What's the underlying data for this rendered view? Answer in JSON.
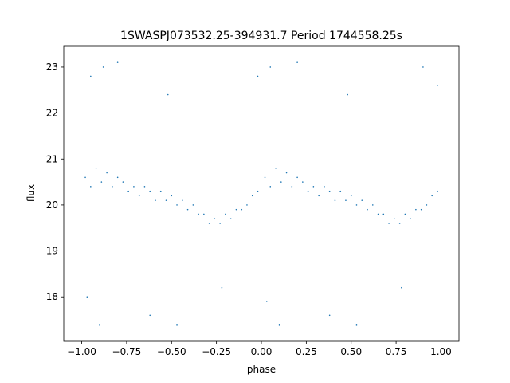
{
  "chart_data": {
    "type": "scatter",
    "title": "1SWASPJ073532.25-394931.7 Period 1744558.25s",
    "xlabel": "phase",
    "ylabel": "flux",
    "xlim": [
      -1.1,
      1.1
    ],
    "ylim": [
      17.05,
      23.45
    ],
    "x_ticks": [
      -1.0,
      -0.75,
      -0.5,
      -0.25,
      0.0,
      0.25,
      0.5,
      0.75,
      1.0
    ],
    "x_tick_labels": [
      "−1.00",
      "−0.75",
      "−0.50",
      "−0.25",
      "0.00",
      "0.25",
      "0.50",
      "0.75",
      "1.00"
    ],
    "y_ticks": [
      18,
      19,
      20,
      21,
      22,
      23
    ],
    "y_tick_labels": [
      "18",
      "19",
      "20",
      "21",
      "22",
      "23"
    ],
    "grid": false,
    "marker_color": "#1f77b4",
    "series": [
      {
        "values_description": "",
        "points": [
          [
            -0.98,
            20.6
          ],
          [
            -0.95,
            20.4
          ],
          [
            -0.92,
            20.8
          ],
          [
            -0.89,
            20.5
          ],
          [
            -0.86,
            20.7
          ],
          [
            -0.83,
            20.4
          ],
          [
            -0.8,
            20.6
          ],
          [
            -0.77,
            20.5
          ],
          [
            -0.74,
            20.3
          ],
          [
            -0.71,
            20.4
          ],
          [
            -0.68,
            20.2
          ],
          [
            -0.65,
            20.4
          ],
          [
            -0.62,
            20.3
          ],
          [
            -0.59,
            20.1
          ],
          [
            -0.56,
            20.3
          ],
          [
            -0.53,
            20.1
          ],
          [
            -0.5,
            20.2
          ],
          [
            -0.47,
            20.0
          ],
          [
            -0.44,
            20.1
          ],
          [
            -0.41,
            19.9
          ],
          [
            -0.38,
            20.0
          ],
          [
            -0.35,
            19.8
          ],
          [
            -0.32,
            19.8
          ],
          [
            -0.29,
            19.6
          ],
          [
            -0.26,
            19.7
          ],
          [
            -0.23,
            19.6
          ],
          [
            -0.2,
            19.8
          ],
          [
            -0.17,
            19.7
          ],
          [
            -0.14,
            19.9
          ],
          [
            -0.11,
            19.9
          ],
          [
            -0.08,
            20.0
          ],
          [
            -0.05,
            20.2
          ],
          [
            -0.02,
            20.3
          ],
          [
            0.02,
            20.6
          ],
          [
            0.05,
            20.4
          ],
          [
            0.08,
            20.8
          ],
          [
            0.11,
            20.5
          ],
          [
            0.14,
            20.7
          ],
          [
            0.17,
            20.4
          ],
          [
            0.2,
            20.6
          ],
          [
            0.23,
            20.5
          ],
          [
            0.26,
            20.3
          ],
          [
            0.29,
            20.4
          ],
          [
            0.32,
            20.2
          ],
          [
            0.35,
            20.4
          ],
          [
            0.38,
            20.3
          ],
          [
            0.41,
            20.1
          ],
          [
            0.44,
            20.3
          ],
          [
            0.47,
            20.1
          ],
          [
            0.5,
            20.2
          ],
          [
            0.53,
            20.0
          ],
          [
            0.56,
            20.1
          ],
          [
            0.59,
            19.9
          ],
          [
            0.62,
            20.0
          ],
          [
            0.65,
            19.8
          ],
          [
            0.68,
            19.8
          ],
          [
            0.71,
            19.6
          ],
          [
            0.74,
            19.7
          ],
          [
            0.77,
            19.6
          ],
          [
            0.8,
            19.8
          ],
          [
            0.83,
            19.7
          ],
          [
            0.86,
            19.9
          ],
          [
            0.89,
            19.9
          ],
          [
            0.92,
            20.0
          ],
          [
            0.95,
            20.2
          ],
          [
            0.98,
            20.3
          ],
          [
            -0.97,
            18.0
          ],
          [
            -0.9,
            17.4
          ],
          [
            -0.62,
            17.6
          ],
          [
            -0.47,
            17.4
          ],
          [
            -0.22,
            18.2
          ],
          [
            0.03,
            17.9
          ],
          [
            0.1,
            17.4
          ],
          [
            0.38,
            17.6
          ],
          [
            0.53,
            17.4
          ],
          [
            0.78,
            18.2
          ],
          [
            -0.95,
            22.8
          ],
          [
            -0.88,
            23.0
          ],
          [
            -0.8,
            23.1
          ],
          [
            -0.52,
            22.4
          ],
          [
            -0.02,
            22.8
          ],
          [
            0.05,
            23.0
          ],
          [
            0.2,
            23.1
          ],
          [
            0.48,
            22.4
          ],
          [
            0.9,
            23.0
          ],
          [
            0.98,
            22.6
          ]
        ]
      }
    ]
  }
}
